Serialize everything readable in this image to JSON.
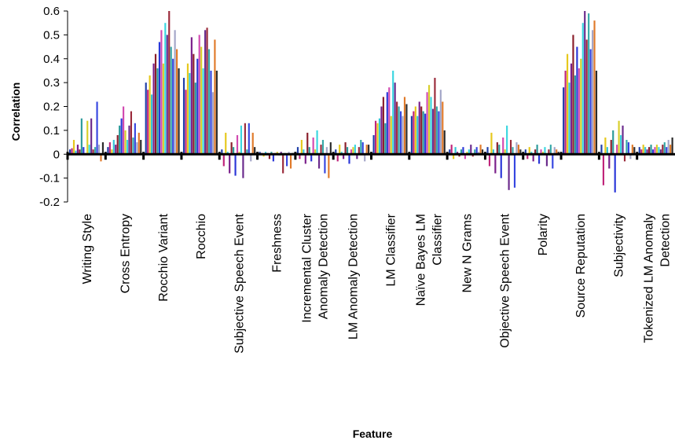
{
  "chart_data": {
    "type": "bar",
    "xlabel": "Feature",
    "ylabel": "Correlation",
    "ylim": [
      -0.2,
      0.6
    ],
    "yticks": [
      "0.6",
      "0.5",
      "0.4",
      "0.3",
      "0.2",
      "0.1",
      "0",
      "-0.1",
      "-0.2"
    ],
    "grid": false,
    "legend": "none",
    "categories": [
      {
        "id": "writing-style",
        "lines": [
          "Writing Style"
        ],
        "bars": [
          0.02,
          0.025,
          0.06,
          0.015,
          0.04,
          0.02,
          0.15,
          0.03,
          0.005,
          0.14,
          0.04,
          0.15,
          0.02,
          0.03,
          0.22,
          0.04,
          -0.03,
          0.05
        ]
      },
      {
        "id": "cross-entropy",
        "lines": [
          "Cross Entropy"
        ],
        "bars": [
          0.03,
          0.05,
          0.02,
          0.06,
          0.04,
          0.08,
          0.12,
          0.15,
          0.2,
          0.1,
          0.06,
          0.12,
          0.18,
          0.07,
          0.13,
          0.05,
          0.09,
          0.06
        ]
      },
      {
        "id": "rocchio-variant",
        "lines": [
          "Rocchio Variant"
        ],
        "bars": [
          0.3,
          0.27,
          0.33,
          0.25,
          0.38,
          0.42,
          0.36,
          0.47,
          0.52,
          0.38,
          0.55,
          0.5,
          0.6,
          0.45,
          0.4,
          0.52,
          0.44,
          0.36
        ]
      },
      {
        "id": "rocchio",
        "lines": [
          "Rocchio"
        ],
        "bars": [
          0.32,
          0.27,
          0.38,
          0.34,
          0.49,
          0.42,
          0.3,
          0.4,
          0.5,
          0.45,
          0.36,
          0.52,
          0.53,
          0.44,
          0.35,
          0.26,
          0.48,
          0.35
        ]
      },
      {
        "id": "subjective-speech-event",
        "lines": [
          "Subjective Speech Event"
        ],
        "bars": [
          0.02,
          -0.05,
          0.09,
          0.01,
          -0.08,
          0.05,
          0.03,
          -0.09,
          0.08,
          0.01,
          0.12,
          -0.1,
          0.13,
          0.02,
          0.13,
          -0.03,
          0.09,
          0.03
        ]
      },
      {
        "id": "freshness",
        "lines": [
          "Freshness"
        ],
        "bars": [
          0.01,
          0.005,
          -0.01,
          0.01,
          0.005,
          -0.02,
          0.01,
          -0.03,
          0.005,
          0.01,
          -0.005,
          0.01,
          -0.08,
          0.005,
          -0.05,
          0.01,
          -0.06,
          0.005
        ]
      },
      {
        "id": "incremental-cluster-anomaly-detection",
        "lines": [
          "Incremental Cluster",
          "Anomaly Detection"
        ],
        "bars": [
          0.03,
          -0.02,
          0.06,
          0.02,
          -0.04,
          0.09,
          0.03,
          -0.03,
          0.07,
          0.02,
          0.1,
          -0.06,
          0.04,
          0.06,
          -0.08,
          0.03,
          -0.1,
          0.05
        ]
      },
      {
        "id": "lm-anomaly-detection",
        "lines": [
          "LM Anomaly Detection"
        ],
        "bars": [
          0.02,
          -0.03,
          0.04,
          0.01,
          -0.02,
          0.05,
          0.03,
          -0.04,
          0.02,
          0.03,
          0.04,
          -0.02,
          0.03,
          0.06,
          0.05,
          -0.03,
          0.04,
          0.04
        ]
      },
      {
        "id": "lm-classifier",
        "lines": [
          "LM Classifier"
        ],
        "bars": [
          0.08,
          0.14,
          0.13,
          0.15,
          0.2,
          0.24,
          0.13,
          0.26,
          0.28,
          0.16,
          0.35,
          0.3,
          0.22,
          0.2,
          0.18,
          0.16,
          0.24,
          0.21
        ]
      },
      {
        "id": "naive-bayes-lm-classifier",
        "lines": [
          "Naïve Bayes LM",
          "Classifier"
        ],
        "bars": [
          0.16,
          0.18,
          0.2,
          0.16,
          0.22,
          0.2,
          0.18,
          0.17,
          0.26,
          0.29,
          0.24,
          0.19,
          0.32,
          0.2,
          0.18,
          0.27,
          0.22,
          0.1
        ]
      },
      {
        "id": "new-n-grams",
        "lines": [
          "New N Grams"
        ],
        "bars": [
          0.02,
          0.04,
          -0.02,
          0.03,
          0.01,
          -0.01,
          0.02,
          0.03,
          -0.02,
          0.01,
          0.02,
          0.04,
          -0.01,
          0.02,
          0.03,
          0.01,
          0.04,
          0.02
        ]
      },
      {
        "id": "objective-speech-event",
        "lines": [
          "Objective Speech Event"
        ],
        "bars": [
          0.03,
          -0.05,
          0.09,
          0.02,
          -0.08,
          0.05,
          0.04,
          -0.1,
          0.07,
          0.02,
          0.12,
          -0.15,
          0.06,
          0.03,
          -0.14,
          0.05,
          0.04,
          0.02
        ]
      },
      {
        "id": "polarity",
        "lines": [
          "Polarity"
        ],
        "bars": [
          0.02,
          -0.02,
          0.03,
          0.01,
          -0.03,
          0.02,
          0.04,
          -0.04,
          0.02,
          0.01,
          0.03,
          -0.05,
          0.02,
          0.04,
          -0.06,
          0.03,
          0.02,
          0.01
        ]
      },
      {
        "id": "source-reputation",
        "lines": [
          "Source Reputation"
        ],
        "bars": [
          0.28,
          0.35,
          0.42,
          0.3,
          0.38,
          0.5,
          0.33,
          0.45,
          0.36,
          0.4,
          0.55,
          0.6,
          0.48,
          0.59,
          0.44,
          0.52,
          0.56,
          0.35
        ]
      },
      {
        "id": "subjectivity",
        "lines": [
          "Subjectivity"
        ],
        "bars": [
          0.04,
          -0.13,
          0.07,
          0.03,
          -0.06,
          0.06,
          0.1,
          -0.16,
          0.04,
          0.14,
          0.08,
          0.12,
          -0.03,
          0.06,
          0.05,
          -0.02,
          0.04,
          0.03
        ]
      },
      {
        "id": "tokenized-lm-anomaly-detection",
        "lines": [
          "Tokenized LM Anomaly",
          "Detection"
        ],
        "bars": [
          0.03,
          0.02,
          0.04,
          0.03,
          0.02,
          0.03,
          0.04,
          0.02,
          0.03,
          0.04,
          0.03,
          0.02,
          0.04,
          0.05,
          0.03,
          0.06,
          0.04,
          0.07
        ]
      }
    ],
    "colors": [
      "#1f3ea8",
      "#c0247a",
      "#e6c81c",
      "#33c4d6",
      "#7a1f8a",
      "#8a1e2a",
      "#2a9a9a",
      "#2a36d8",
      "#d24ab0",
      "#d8cf2a",
      "#3ad6e0",
      "#6a2a8c",
      "#9a2a3a",
      "#36a8a8",
      "#3646e0",
      "#a4a6c8",
      "#e07a2a",
      "#2a2a2a"
    ]
  }
}
